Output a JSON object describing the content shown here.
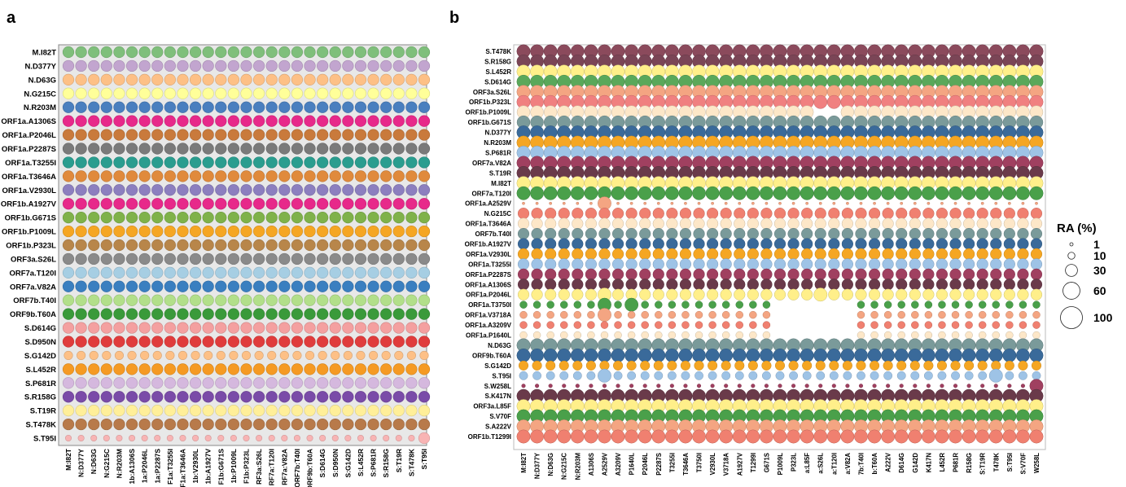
{
  "figure": {
    "panel_a_letter": "a",
    "panel_b_letter": "b",
    "legend_title": "RA (%)",
    "legend_sizes": [
      1,
      10,
      30,
      60,
      100
    ],
    "legend_labels": [
      "1",
      "10",
      "30",
      "60",
      "100"
    ]
  },
  "chart_data": [
    {
      "type": "scatter",
      "panel": "a",
      "title": "",
      "xlabel": "",
      "ylabel": "",
      "grid": false,
      "x_categories": [
        "M:I82T",
        "N:D377Y",
        "N:D63G",
        "N:G215C",
        "N:R203M",
        "ORF1a:A1306S",
        "ORF1a:P2046L",
        "ORF1a:P2287S",
        "ORF1a:T3255I",
        "ORF1a:T3646A",
        "ORF1a:V2930L",
        "ORF1b:A1927V",
        "ORF1b:G671S",
        "ORF1b:P1009L",
        "ORF1b:P323L",
        "ORF3a:S26L",
        "ORF7a:T120I",
        "ORF7a:V82A",
        "ORF7b:T40I",
        "ORF9b:T60A",
        "S:D614G",
        "S:D950N",
        "S:G142D",
        "S:L452R",
        "S:P681R",
        "S:R158G",
        "S:T19R",
        "S:T478K",
        "S:T95I"
      ],
      "x_tick_labels_as_printed": [
        "M:I82T",
        "N:D377Y",
        "N:D63G",
        "N:G215C",
        "N:R203M",
        "1b:A1306S",
        "1a:P2046L",
        "1a:P2287S",
        "F1a:T3255I",
        "F1a:T3646A",
        "1b:V2930L",
        "1b:A1927V",
        "F1b:G671S",
        "1b:P1009L",
        "F1b:P323L",
        "RF3a:S26L",
        "RF7a:T120I",
        "RF7a:V82A",
        "ORF7b:T40I",
        "ORF9b:T60A",
        "S:D614G",
        "S:D950N",
        "S:G142D",
        "S:L452R",
        "S:P681R",
        "S:R158G",
        "S:T19R",
        "S:T478K",
        "S:T95I"
      ],
      "rows": [
        {
          "label": "M.I82T",
          "color": "#7fbf7b"
        },
        {
          "label": "N.D377Y",
          "color": "#c2a5cf"
        },
        {
          "label": "N.D63G",
          "color": "#fdc086"
        },
        {
          "label": "N.G215C",
          "color": "#ffff99"
        },
        {
          "label": "N.R203M",
          "color": "#4a7fbf"
        },
        {
          "label": "ORF1a.A1306S",
          "color": "#e7298a"
        },
        {
          "label": "ORF1a.P2046L",
          "color": "#c97a3c"
        },
        {
          "label": "ORF1a.P2287S",
          "color": "#7a7a7a"
        },
        {
          "label": "ORF1a.T3255I",
          "color": "#2a9d8f"
        },
        {
          "label": "ORF1a.T3646A",
          "color": "#e08a3c"
        },
        {
          "label": "ORF1a.V2930L",
          "color": "#8c7fbf"
        },
        {
          "label": "ORF1b.A1927V",
          "color": "#e7298a"
        },
        {
          "label": "ORF1b.G671S",
          "color": "#7fb24a"
        },
        {
          "label": "ORF1b.P1009L",
          "color": "#f5a623"
        },
        {
          "label": "ORF1b.P323L",
          "color": "#b8864a"
        },
        {
          "label": "ORF3a.S26L",
          "color": "#8a8a8a"
        },
        {
          "label": "ORF7a.T120I",
          "color": "#a6cee3"
        },
        {
          "label": "ORF7a.V82A",
          "color": "#3a7fc0"
        },
        {
          "label": "ORF7b.T40I",
          "color": "#b2df8a"
        },
        {
          "label": "ORF9b.T60A",
          "color": "#3a9a3a"
        },
        {
          "label": "S.D614G",
          "color": "#f4a0a0"
        },
        {
          "label": "S.D950N",
          "color": "#e03c3c"
        },
        {
          "label": "S.G142D",
          "color": "#fdc086"
        },
        {
          "label": "S.L452R",
          "color": "#f59a23"
        },
        {
          "label": "S.P681R",
          "color": "#d5b8de"
        },
        {
          "label": "S.R158G",
          "color": "#7a4ba8"
        },
        {
          "label": "S.T19R",
          "color": "#ffef99"
        },
        {
          "label": "S.T478K",
          "color": "#b87a4a"
        },
        {
          "label": "S.T95I",
          "color": "#f8b4b4"
        }
      ],
      "ra_percent": {
        "default": 100,
        "G142D_row_small": 60,
        "T95I_row_small": 30,
        "T95I_last_sample": 100
      }
    },
    {
      "type": "scatter",
      "panel": "b",
      "title": "",
      "xlabel": "",
      "ylabel": "",
      "grid": false,
      "x_tick_labels_as_printed": [
        "M:I82T",
        "N:D377Y",
        "N:D63G",
        "N:G215C",
        "N:R203M",
        "A1306S",
        "A2529V",
        "A3209V",
        "P1640L",
        "P2046L",
        "P2287S",
        "T3255I",
        "T3646A",
        "T3750I",
        "V2930L",
        "V3718A",
        "A1927V",
        "T1299I",
        "G671S",
        "P1009L",
        "P323L",
        "a:L85F",
        "a:S26L",
        "a:T120I",
        "a:V82A",
        "7b:T40I",
        "b:T60A",
        "A222V",
        "D614G",
        "G142D",
        "K417N",
        "L452R",
        "P681R",
        "R158G",
        "S:T19R",
        "T478K",
        "S:T95I",
        "S:V70F",
        "W258L"
      ],
      "rows": [
        {
          "label": "S.T478K",
          "color": "#8b4a5c",
          "ra": 100
        },
        {
          "label": "S.R158G",
          "color": "#7a4556",
          "ra": 100
        },
        {
          "label": "S.L452R",
          "color": "#ffef8a",
          "ra": 100
        },
        {
          "label": "S.D614G",
          "color": "#5aa85a",
          "ra": 100
        },
        {
          "label": "ORF3a.S26L",
          "color": "#f4a582",
          "ra": 100
        },
        {
          "label": "ORF1b.P323L",
          "color": "#f08080",
          "ra": 100
        },
        {
          "label": "ORF1b.P1009L",
          "color": "#fde7c8",
          "ra": 95
        },
        {
          "label": "ORF1b.G671S",
          "color": "#7a9a9a",
          "ra": 95
        },
        {
          "label": "N.D377Y",
          "color": "#3a6a9a",
          "ra": 100
        },
        {
          "label": "N.R203M",
          "color": "#f5a623",
          "ra": 100
        },
        {
          "label": "S.P681R",
          "color": "#9ec3e6",
          "ra": 100
        },
        {
          "label": "ORF7a.V82A",
          "color": "#a04060",
          "ra": 100
        },
        {
          "label": "S.T19R",
          "color": "#6a3a4a",
          "ra": 100
        },
        {
          "label": "M.I82T",
          "color": "#ffef8a",
          "ra": 100
        },
        {
          "label": "ORF7a.T120I",
          "color": "#4aa04a",
          "ra": 100
        },
        {
          "label": "ORF1a.A2529V",
          "color": "#f4a582",
          "ra": 4
        },
        {
          "label": "N.G215C",
          "color": "#f08070",
          "ra": 70
        },
        {
          "label": "ORF1a.T3646A",
          "color": "#fde7c8",
          "ra": 70
        },
        {
          "label": "ORF7b.T40I",
          "color": "#7a9a9a",
          "ra": 70
        },
        {
          "label": "ORF1b.A1927V",
          "color": "#3a6a9a",
          "ra": 70
        },
        {
          "label": "ORF1a.V2930L",
          "color": "#f5a623",
          "ra": 70
        },
        {
          "label": "ORF1a.T3255I",
          "color": "#9ec3e6",
          "ra": 70
        },
        {
          "label": "ORF1a.P2287S",
          "color": "#a04060",
          "ra": 70
        },
        {
          "label": "ORF1a.A1306S",
          "color": "#6a3a4a",
          "ra": 70
        },
        {
          "label": "ORF1a.P2046L",
          "color": "#ffef8a",
          "ra": 70
        },
        {
          "label": "ORF1a.T3750I",
          "color": "#4aa04a",
          "ra": 30
        },
        {
          "label": "ORF1a.V3718A",
          "color": "#f4a582",
          "ra": 30
        },
        {
          "label": "ORF1a.A3209V",
          "color": "#f08070",
          "ra": 30
        },
        {
          "label": "ORF1a.P1640L",
          "color": "#fde7c8",
          "ra": 30
        },
        {
          "label": "N.D63G",
          "color": "#7a9a9a",
          "ra": 100
        },
        {
          "label": "ORF9b.T60A",
          "color": "#3a6a9a",
          "ra": 100
        },
        {
          "label": "S.G142D",
          "color": "#f5a623",
          "ra": 50
        },
        {
          "label": "S.T95I",
          "color": "#9ec3e6",
          "ra": 40
        },
        {
          "label": "S.W258L",
          "color": "#a04060",
          "ra": 8
        },
        {
          "label": "S.K417N",
          "color": "#6a3a4a",
          "ra": 100
        },
        {
          "label": "ORF3a.L85F",
          "color": "#ffef8a",
          "ra": 100
        },
        {
          "label": "S.V70F",
          "color": "#4aa04a",
          "ra": 100
        },
        {
          "label": "S.A222V",
          "color": "#f4a582",
          "ra": 100
        },
        {
          "label": "ORF1b.T1299I",
          "color": "#f08070",
          "ra": 100
        }
      ]
    }
  ]
}
